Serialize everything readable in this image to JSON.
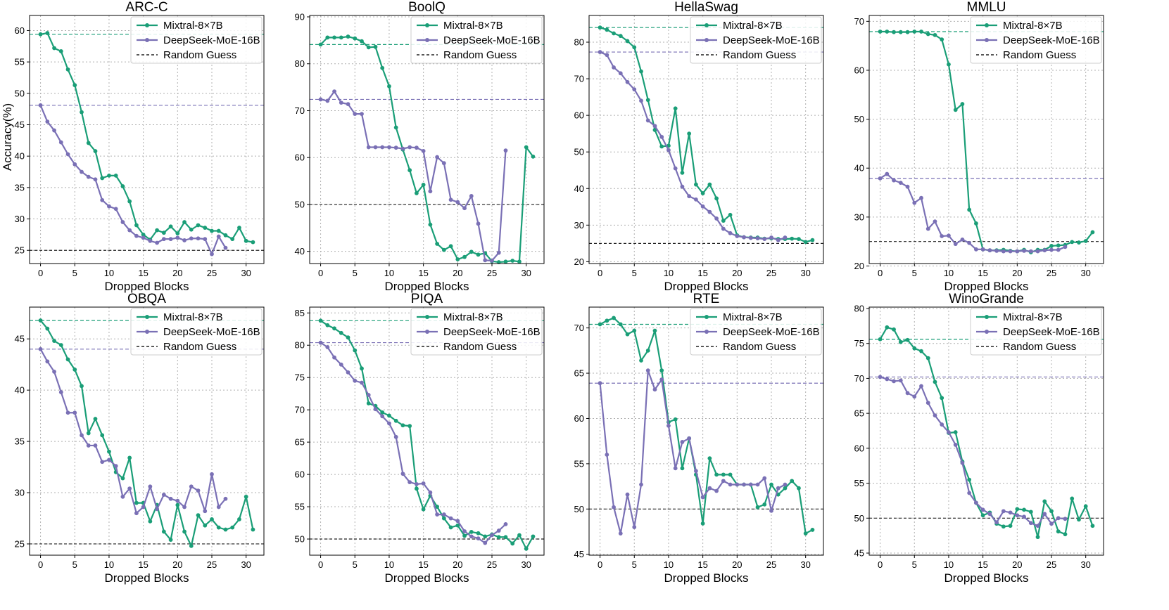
{
  "colors": {
    "mixtral": "#1a9e77",
    "deepseek": "#7a70b5",
    "random": "#222222"
  },
  "legend": [
    "Mixtral-8×7B",
    "DeepSeek-MoE-16B",
    "Random Guess"
  ],
  "ylabel": "Accuracy(%)",
  "chart_data": [
    {
      "type": "line",
      "title": "ARC-C",
      "xlabel": "Dropped Blocks",
      "ylabel": "Accuracy(%)",
      "xlim": [
        -1.6,
        32.6
      ],
      "ylim": [
        22.9,
        62.4
      ],
      "xticks": [
        0,
        5,
        10,
        15,
        20,
        25,
        30
      ],
      "yticks": [
        25,
        30,
        35,
        40,
        45,
        50,
        55,
        60
      ],
      "random": 25.0,
      "series": [
        {
          "name": "Mixtral-8×7B",
          "baseline": 59.4,
          "values": [
            59.4,
            59.6,
            57.2,
            56.7,
            53.8,
            51.3,
            47.0,
            42.1,
            40.8,
            36.5,
            36.9,
            36.9,
            35.2,
            32.8,
            29.0,
            27.5,
            26.7,
            28.2,
            27.8,
            28.8,
            27.7,
            29.5,
            28.3,
            29.0,
            28.6,
            28.1,
            28.1,
            27.4,
            26.8,
            28.6,
            26.5,
            26.3
          ]
        },
        {
          "name": "DeepSeek-MoE-16B",
          "baseline": 48.1,
          "values": [
            48.1,
            45.5,
            44.1,
            42.2,
            40.3,
            38.7,
            37.5,
            36.7,
            36.3,
            33.0,
            32.0,
            31.6,
            29.5,
            28.2,
            27.3,
            27.0,
            26.5,
            26.2,
            26.8,
            26.8,
            27.0,
            26.6,
            26.9,
            26.9,
            26.8,
            24.4,
            27.2,
            25.4
          ]
        }
      ]
    },
    {
      "type": "line",
      "title": "BoolQ",
      "xlabel": "Dropped Blocks",
      "xlim": [
        -1.6,
        32.6
      ],
      "ylim": [
        37.4,
        90.3
      ],
      "xticks": [
        0,
        5,
        10,
        15,
        20,
        25,
        30
      ],
      "yticks": [
        40,
        50,
        60,
        70,
        80,
        90
      ],
      "random": 50.0,
      "series": [
        {
          "name": "Mixtral-8×7B",
          "baseline": 84.1,
          "values": [
            84.1,
            85.6,
            85.6,
            85.6,
            85.8,
            85.4,
            84.8,
            83.5,
            83.6,
            79.1,
            75.2,
            66.4,
            61.7,
            57.3,
            52.4,
            54.2,
            45.7,
            41.6,
            40.3,
            41.1,
            38.3,
            38.8,
            39.9,
            39.3,
            39.6,
            37.9,
            37.7,
            37.8,
            38.0,
            37.8,
            62.2,
            60.2
          ]
        },
        {
          "name": "DeepSeek-MoE-16B",
          "baseline": 72.4,
          "values": [
            72.4,
            72.1,
            74.1,
            71.7,
            71.4,
            69.3,
            69.3,
            62.2,
            62.2,
            62.2,
            62.2,
            62.1,
            61.9,
            62.2,
            62.1,
            61.4,
            52.8,
            60.1,
            58.8,
            51.0,
            50.5,
            49.2,
            51.8,
            45.9,
            38.1,
            38.0,
            39.7,
            61.5
          ]
        }
      ]
    },
    {
      "type": "line",
      "title": "HellaSwag",
      "xlabel": "Dropped Blocks",
      "xlim": [
        -1.6,
        32.6
      ],
      "ylim": [
        19.5,
        87.3
      ],
      "xticks": [
        0,
        5,
        10,
        15,
        20,
        25,
        30
      ],
      "yticks": [
        20,
        30,
        40,
        50,
        60,
        70,
        80
      ],
      "random": 25.0,
      "series": [
        {
          "name": "Mixtral-8×7B",
          "baseline": 84.0,
          "values": [
            84.0,
            83.4,
            82.4,
            81.7,
            80.3,
            78.6,
            72.0,
            64.2,
            56.0,
            51.5,
            51.7,
            61.9,
            44.3,
            55.0,
            41.1,
            38.7,
            41.1,
            37.3,
            31.2,
            32.8,
            27.2,
            26.7,
            26.6,
            26.6,
            26.3,
            26.4,
            26.2,
            26.2,
            26.3,
            26.2,
            25.4,
            25.9
          ]
        },
        {
          "name": "DeepSeek-MoE-16B",
          "baseline": 77.3,
          "values": [
            77.3,
            76.5,
            73.1,
            71.5,
            69.1,
            67.1,
            64.0,
            58.6,
            57.1,
            54.1,
            50.5,
            45.5,
            40.5,
            37.9,
            37.0,
            35.1,
            33.6,
            31.8,
            29.0,
            27.8,
            27.0,
            26.7,
            26.5,
            26.4,
            26.2,
            26.6,
            25.9,
            26.6
          ]
        }
      ]
    },
    {
      "type": "line",
      "title": "MMLU",
      "xlabel": "Dropped Blocks",
      "xlim": [
        -1.6,
        32.6
      ],
      "ylim": [
        20.5,
        71.2
      ],
      "xticks": [
        0,
        5,
        10,
        15,
        20,
        25,
        30
      ],
      "yticks": [
        20,
        30,
        40,
        50,
        60,
        70
      ],
      "random": 25.0,
      "series": [
        {
          "name": "Mixtral-8×7B",
          "baseline": 67.9,
          "values": [
            67.9,
            67.9,
            67.8,
            67.8,
            67.8,
            67.9,
            67.9,
            67.4,
            67.2,
            66.3,
            61.2,
            51.9,
            53.1,
            31.5,
            28.7,
            23.4,
            23.2,
            23.2,
            23.3,
            23.1,
            23.0,
            23.3,
            22.8,
            23.3,
            23.3,
            24.1,
            24.2,
            24.3,
            24.9,
            24.8,
            25.1,
            26.9
          ]
        },
        {
          "name": "DeepSeek-MoE-16B",
          "baseline": 37.9,
          "values": [
            37.9,
            38.8,
            37.5,
            37.0,
            36.2,
            32.9,
            33.9,
            27.6,
            29.1,
            26.1,
            26.2,
            24.5,
            25.4,
            24.7,
            23.4,
            23.4,
            23.2,
            23.1,
            23.0,
            23.0,
            23.0,
            23.1,
            23.0,
            23.0,
            23.2,
            23.3,
            23.3,
            23.9
          ]
        }
      ]
    },
    {
      "type": "line",
      "title": "OBQA",
      "xlabel": "Dropped Blocks",
      "xlim": [
        -1.6,
        32.6
      ],
      "ylim": [
        23.9,
        48.1
      ],
      "xticks": [
        0,
        5,
        10,
        15,
        20,
        25,
        30
      ],
      "yticks": [
        25,
        30,
        35,
        40,
        45
      ],
      "random": 25.0,
      "series": [
        {
          "name": "Mixtral-8×7B",
          "baseline": 46.8,
          "values": [
            46.8,
            46.0,
            44.8,
            44.4,
            43.0,
            42.0,
            40.4,
            35.8,
            37.2,
            35.6,
            34.0,
            32.0,
            31.4,
            33.4,
            29.0,
            29.0,
            27.2,
            28.8,
            26.2,
            25.4,
            28.8,
            26.2,
            24.8,
            27.8,
            26.8,
            27.4,
            26.6,
            26.4,
            26.6,
            27.4,
            29.6,
            26.4
          ]
        },
        {
          "name": "DeepSeek-MoE-16B",
          "baseline": 44.0,
          "values": [
            44.0,
            42.8,
            41.8,
            39.8,
            37.8,
            37.8,
            35.6,
            34.6,
            34.6,
            33.0,
            33.2,
            32.6,
            29.6,
            30.4,
            28.0,
            28.6,
            30.6,
            28.4,
            29.8,
            29.4,
            29.2,
            28.6,
            30.6,
            30.2,
            28.2,
            31.8,
            28.6,
            29.4
          ]
        }
      ]
    },
    {
      "type": "line",
      "title": "PIQA",
      "xlabel": "Dropped Blocks",
      "xlim": [
        -1.6,
        32.6
      ],
      "ylim": [
        47.5,
        85.9
      ],
      "xticks": [
        0,
        5,
        10,
        15,
        20,
        25,
        30
      ],
      "yticks": [
        50,
        55,
        60,
        65,
        70,
        75,
        80,
        85
      ],
      "random": 50.0,
      "series": [
        {
          "name": "Mixtral-8×7B",
          "baseline": 83.8,
          "values": [
            83.8,
            83.1,
            82.6,
            81.9,
            81.2,
            79.2,
            76.4,
            71.0,
            70.6,
            69.6,
            69.1,
            68.3,
            67.6,
            67.5,
            57.8,
            54.6,
            56.7,
            55.0,
            53.2,
            51.8,
            52.1,
            50.5,
            51.1,
            50.9,
            50.4,
            50.7,
            50.3,
            50.3,
            49.3,
            50.6,
            48.5,
            50.4
          ]
        },
        {
          "name": "DeepSeek-MoE-16B",
          "baseline": 80.4,
          "values": [
            80.4,
            79.7,
            78.1,
            77.0,
            75.8,
            74.5,
            74.2,
            72.3,
            70.1,
            69.0,
            67.9,
            65.8,
            60.1,
            58.8,
            58.5,
            58.6,
            57.2,
            53.8,
            53.8,
            53.2,
            52.8,
            51.2,
            50.4,
            50.1,
            49.4,
            50.6,
            51.3,
            52.3
          ]
        }
      ]
    },
    {
      "type": "line",
      "title": "RTE",
      "xlabel": "Dropped Blocks",
      "xlim": [
        -1.6,
        32.6
      ],
      "ylim": [
        44.9,
        72.3
      ],
      "xticks": [
        0,
        5,
        10,
        15,
        20,
        25,
        30
      ],
      "yticks": [
        45,
        50,
        55,
        60,
        65,
        70
      ],
      "random": 50.0,
      "series": [
        {
          "name": "Mixtral-8×7B",
          "baseline": 70.4,
          "values": [
            70.4,
            70.8,
            71.1,
            70.4,
            69.3,
            69.7,
            66.4,
            67.5,
            69.7,
            65.3,
            59.6,
            59.9,
            54.5,
            57.8,
            53.8,
            48.4,
            55.6,
            53.8,
            53.8,
            53.8,
            52.7,
            52.7,
            52.7,
            50.2,
            50.5,
            52.7,
            51.6,
            52.3,
            53.1,
            52.3,
            47.3,
            47.7
          ]
        },
        {
          "name": "DeepSeek-MoE-16B",
          "baseline": 63.9,
          "values": [
            63.9,
            56.0,
            50.2,
            47.3,
            51.6,
            48.0,
            52.7,
            65.3,
            63.2,
            64.3,
            59.2,
            54.5,
            57.4,
            57.8,
            54.2,
            51.3,
            52.3,
            52.0,
            53.1,
            52.7,
            52.7,
            52.7,
            52.7,
            52.7,
            53.4,
            49.8,
            52.3,
            52.7
          ]
        }
      ]
    },
    {
      "type": "line",
      "title": "WinoGrande",
      "xlabel": "Dropped Blocks",
      "xlim": [
        -1.6,
        32.6
      ],
      "ylim": [
        44.7,
        80.2
      ],
      "xticks": [
        0,
        5,
        10,
        15,
        20,
        25,
        30
      ],
      "yticks": [
        45,
        50,
        55,
        60,
        65,
        70,
        75,
        80
      ],
      "random": 50.0,
      "series": [
        {
          "name": "Mixtral-8×7B",
          "baseline": 75.6,
          "values": [
            75.6,
            77.3,
            77.0,
            75.2,
            75.5,
            74.3,
            73.9,
            72.9,
            69.5,
            67.2,
            62.2,
            62.3,
            58.1,
            55.5,
            52.2,
            50.4,
            50.8,
            49.2,
            48.8,
            48.9,
            51.3,
            51.2,
            50.9,
            47.3,
            52.4,
            51.0,
            48.1,
            47.7,
            52.8,
            49.8,
            51.7,
            48.9
          ]
        },
        {
          "name": "DeepSeek-MoE-16B",
          "baseline": 70.2,
          "values": [
            70.2,
            69.9,
            69.6,
            69.7,
            67.9,
            67.4,
            68.9,
            66.5,
            64.7,
            63.4,
            62.3,
            60.5,
            57.9,
            53.6,
            52.2,
            51.2,
            50.6,
            49.4,
            51.0,
            50.8,
            50.4,
            50.2,
            49.3,
            48.9,
            50.6,
            49.2,
            50.0,
            49.9
          ]
        }
      ]
    }
  ]
}
